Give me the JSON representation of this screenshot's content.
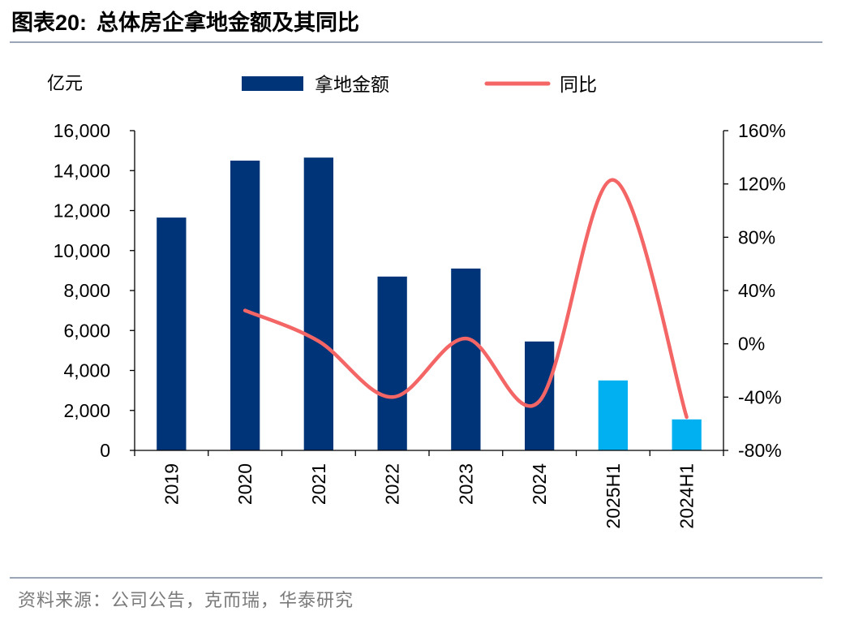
{
  "title": {
    "label": "图表20:",
    "text": "总体房企拿地金额及其同比"
  },
  "source": "资料来源：公司公告，克而瑞，华泰研究",
  "colors": {
    "bar_primary": "#003478",
    "bar_highlight": "#00b0f0",
    "line": "#f46566",
    "axis": "#000000",
    "rule": "#9aa5b8"
  },
  "chart_data": {
    "type": "bar",
    "categories": [
      "2019",
      "2020",
      "2021",
      "2022",
      "2023",
      "2024",
      "2025H1",
      "2024H1"
    ],
    "series": [
      {
        "name": "拿地金额",
        "type": "bar",
        "axis": "left",
        "values": [
          11650,
          14500,
          14650,
          8700,
          9100,
          5450,
          3500,
          1550
        ],
        "highlight_categories": [
          "2025H1",
          "2024H1"
        ]
      },
      {
        "name": "同比",
        "type": "line",
        "axis": "right",
        "unit": "%",
        "smooth": true,
        "values": [
          null,
          25,
          2,
          -40,
          4,
          -43,
          123,
          -55
        ]
      }
    ],
    "y_left": {
      "unit_label": "亿元",
      "min": 0,
      "max": 16000,
      "ticks": [
        0,
        2000,
        4000,
        6000,
        8000,
        10000,
        12000,
        14000,
        16000
      ],
      "tick_labels": [
        "0",
        "2,000",
        "4,000",
        "6,000",
        "8,000",
        "10,000",
        "12,000",
        "14,000",
        "16,000"
      ]
    },
    "y_right": {
      "min": -80,
      "max": 160,
      "ticks": [
        -80,
        -40,
        0,
        40,
        80,
        120,
        160
      ],
      "tick_labels": [
        "-80%",
        "-40%",
        "0%",
        "40%",
        "80%",
        "120%",
        "160%"
      ]
    },
    "legend": [
      {
        "name": "拿地金额",
        "marker": "bar"
      },
      {
        "name": "同比",
        "marker": "line"
      }
    ],
    "legend_position": "top-center",
    "grid": false
  }
}
